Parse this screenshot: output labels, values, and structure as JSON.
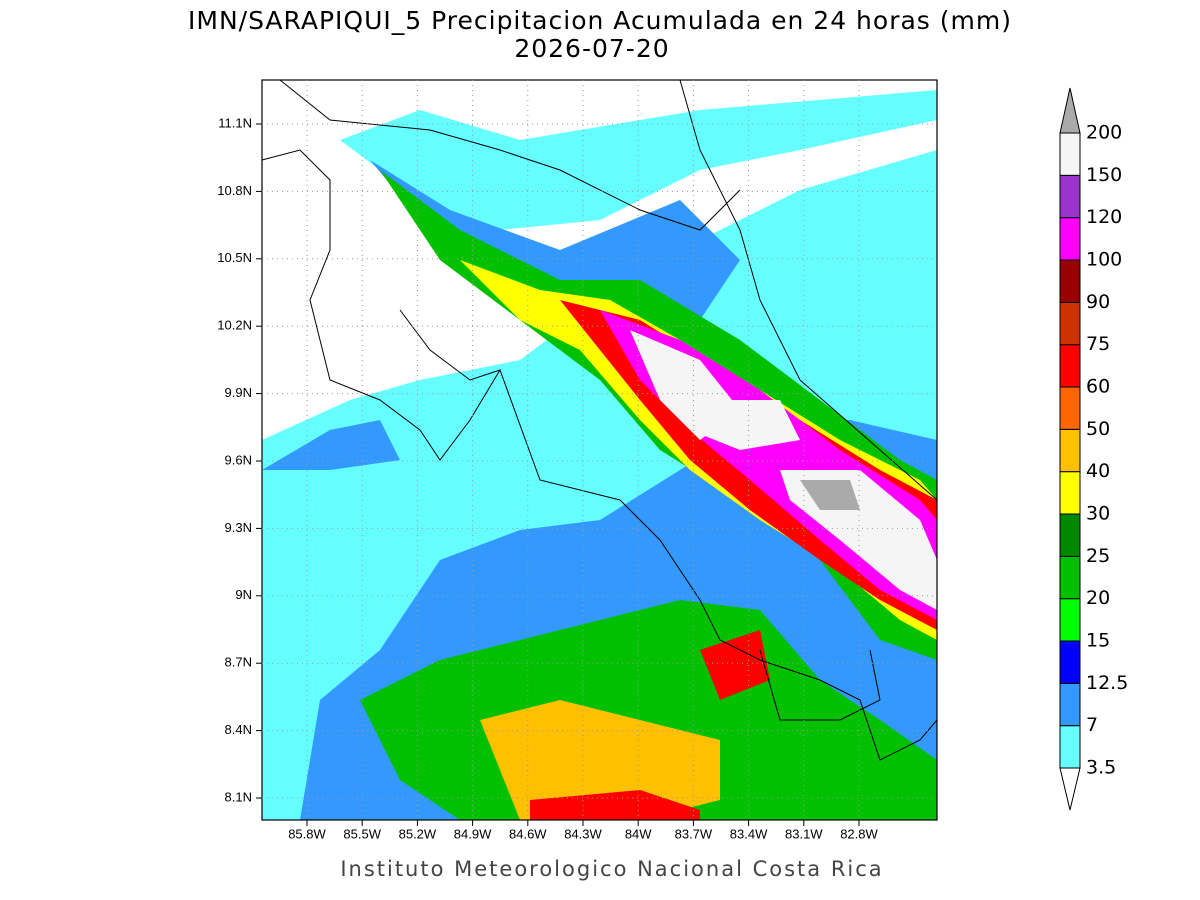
{
  "header": {
    "title": "IMN/SARAPIQUI_5 Precipitacion Acumulada en 24 horas (mm)",
    "date": "2026-07-20"
  },
  "map": {
    "lat_labels": [
      "11.1N",
      "10.8N",
      "10.5N",
      "10.2N",
      "9.9N",
      "9.6N",
      "9.3N",
      "9N",
      "8.7N",
      "8.4N",
      "8.1N"
    ],
    "lon_labels": [
      "85.8W",
      "85.5W",
      "85.2W",
      "84.9W",
      "84.6W",
      "84.3W",
      "84W",
      "83.7W",
      "83.4W",
      "83.1W",
      "82.8W"
    ]
  },
  "colorbar": {
    "levels": [
      3.5,
      7,
      12.5,
      15,
      20,
      25,
      30,
      40,
      50,
      60,
      75,
      90,
      100,
      120,
      150,
      200
    ],
    "colors": [
      "#66ffff",
      "#3399ff",
      "#0000ff",
      "#00ff00",
      "#00c000",
      "#008800",
      "#ffff00",
      "#ffc000",
      "#ff6600",
      "#ff0000",
      "#cc3300",
      "#990000",
      "#ff00ff",
      "#9933cc",
      "#f5f5f5"
    ],
    "under_color": "#ffffff",
    "over_color": "#aaaaaa"
  },
  "footer": "Instituto Meteorologico Nacional Costa Rica"
}
